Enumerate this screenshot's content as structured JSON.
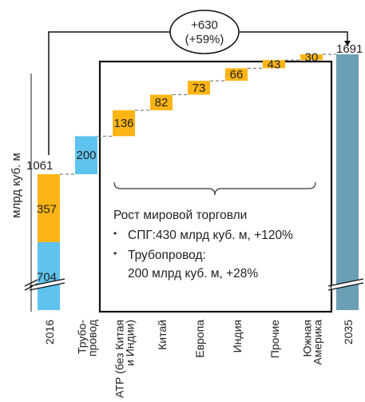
{
  "chart_data": {
    "type": "waterfall",
    "ylabel": "млрд куб. м",
    "categories": [
      "2016",
      "Трубо-провод",
      "АТР (без Китая и Индии)",
      "Китай",
      "Европа",
      "Индия",
      "Прочие",
      "Южная Америка",
      "2035"
    ],
    "start": {
      "label": "2016",
      "total": 1061,
      "segments": [
        {
          "name": "",
          "value": 704,
          "color": "#5fc3ef"
        },
        {
          "name": "",
          "value": 357,
          "color": "#fdb515"
        }
      ]
    },
    "increments": [
      {
        "label": "Трубо-провод",
        "value": 200,
        "color": "#5fc3ef"
      },
      {
        "label": "АТР (без Китая и Индии)",
        "value": 136,
        "color": "#fdb515"
      },
      {
        "label": "Китай",
        "value": 82,
        "color": "#fdb515"
      },
      {
        "label": "Европа",
        "value": 73,
        "color": "#fdb515"
      },
      {
        "label": "Индия",
        "value": 66,
        "color": "#fdb515"
      },
      {
        "label": "Прочие",
        "value": 43,
        "color": "#fdb515"
      },
      {
        "label": "Южная Америка",
        "value": 30,
        "color": "#fdb515"
      }
    ],
    "end": {
      "label": "2035",
      "total": 1691,
      "color": "#6a9fb5"
    },
    "labels": {
      "start_total": "1061",
      "start_seg_bottom": "704",
      "start_seg_top": "357",
      "end_total": "1691",
      "increments": [
        "200",
        "136",
        "82",
        "73",
        "66",
        "43",
        "30"
      ]
    },
    "axis_break": true,
    "change_annotation": {
      "line1": "+630",
      "line2": "(+59%)"
    }
  },
  "note": {
    "title": "Рост мировой торговли",
    "bullet1": "СПГ:430 млрд куб. м, +120%",
    "bullet2_line1": "Трубопровод:",
    "bullet2_line2": "200 млрд куб. м, +28%",
    "bullet_symbol": "•"
  },
  "x_labels": [
    {
      "lines": [
        "2016"
      ]
    },
    {
      "lines": [
        "Трубо-",
        "провод"
      ]
    },
    {
      "lines": [
        "АТР (без Китая",
        "и Индии)"
      ]
    },
    {
      "lines": [
        "Китай"
      ]
    },
    {
      "lines": [
        "Европа"
      ]
    },
    {
      "lines": [
        "Индия"
      ]
    },
    {
      "lines": [
        "Прочие"
      ]
    },
    {
      "lines": [
        "Южная",
        "Америка"
      ]
    },
    {
      "lines": [
        "2035"
      ]
    }
  ]
}
